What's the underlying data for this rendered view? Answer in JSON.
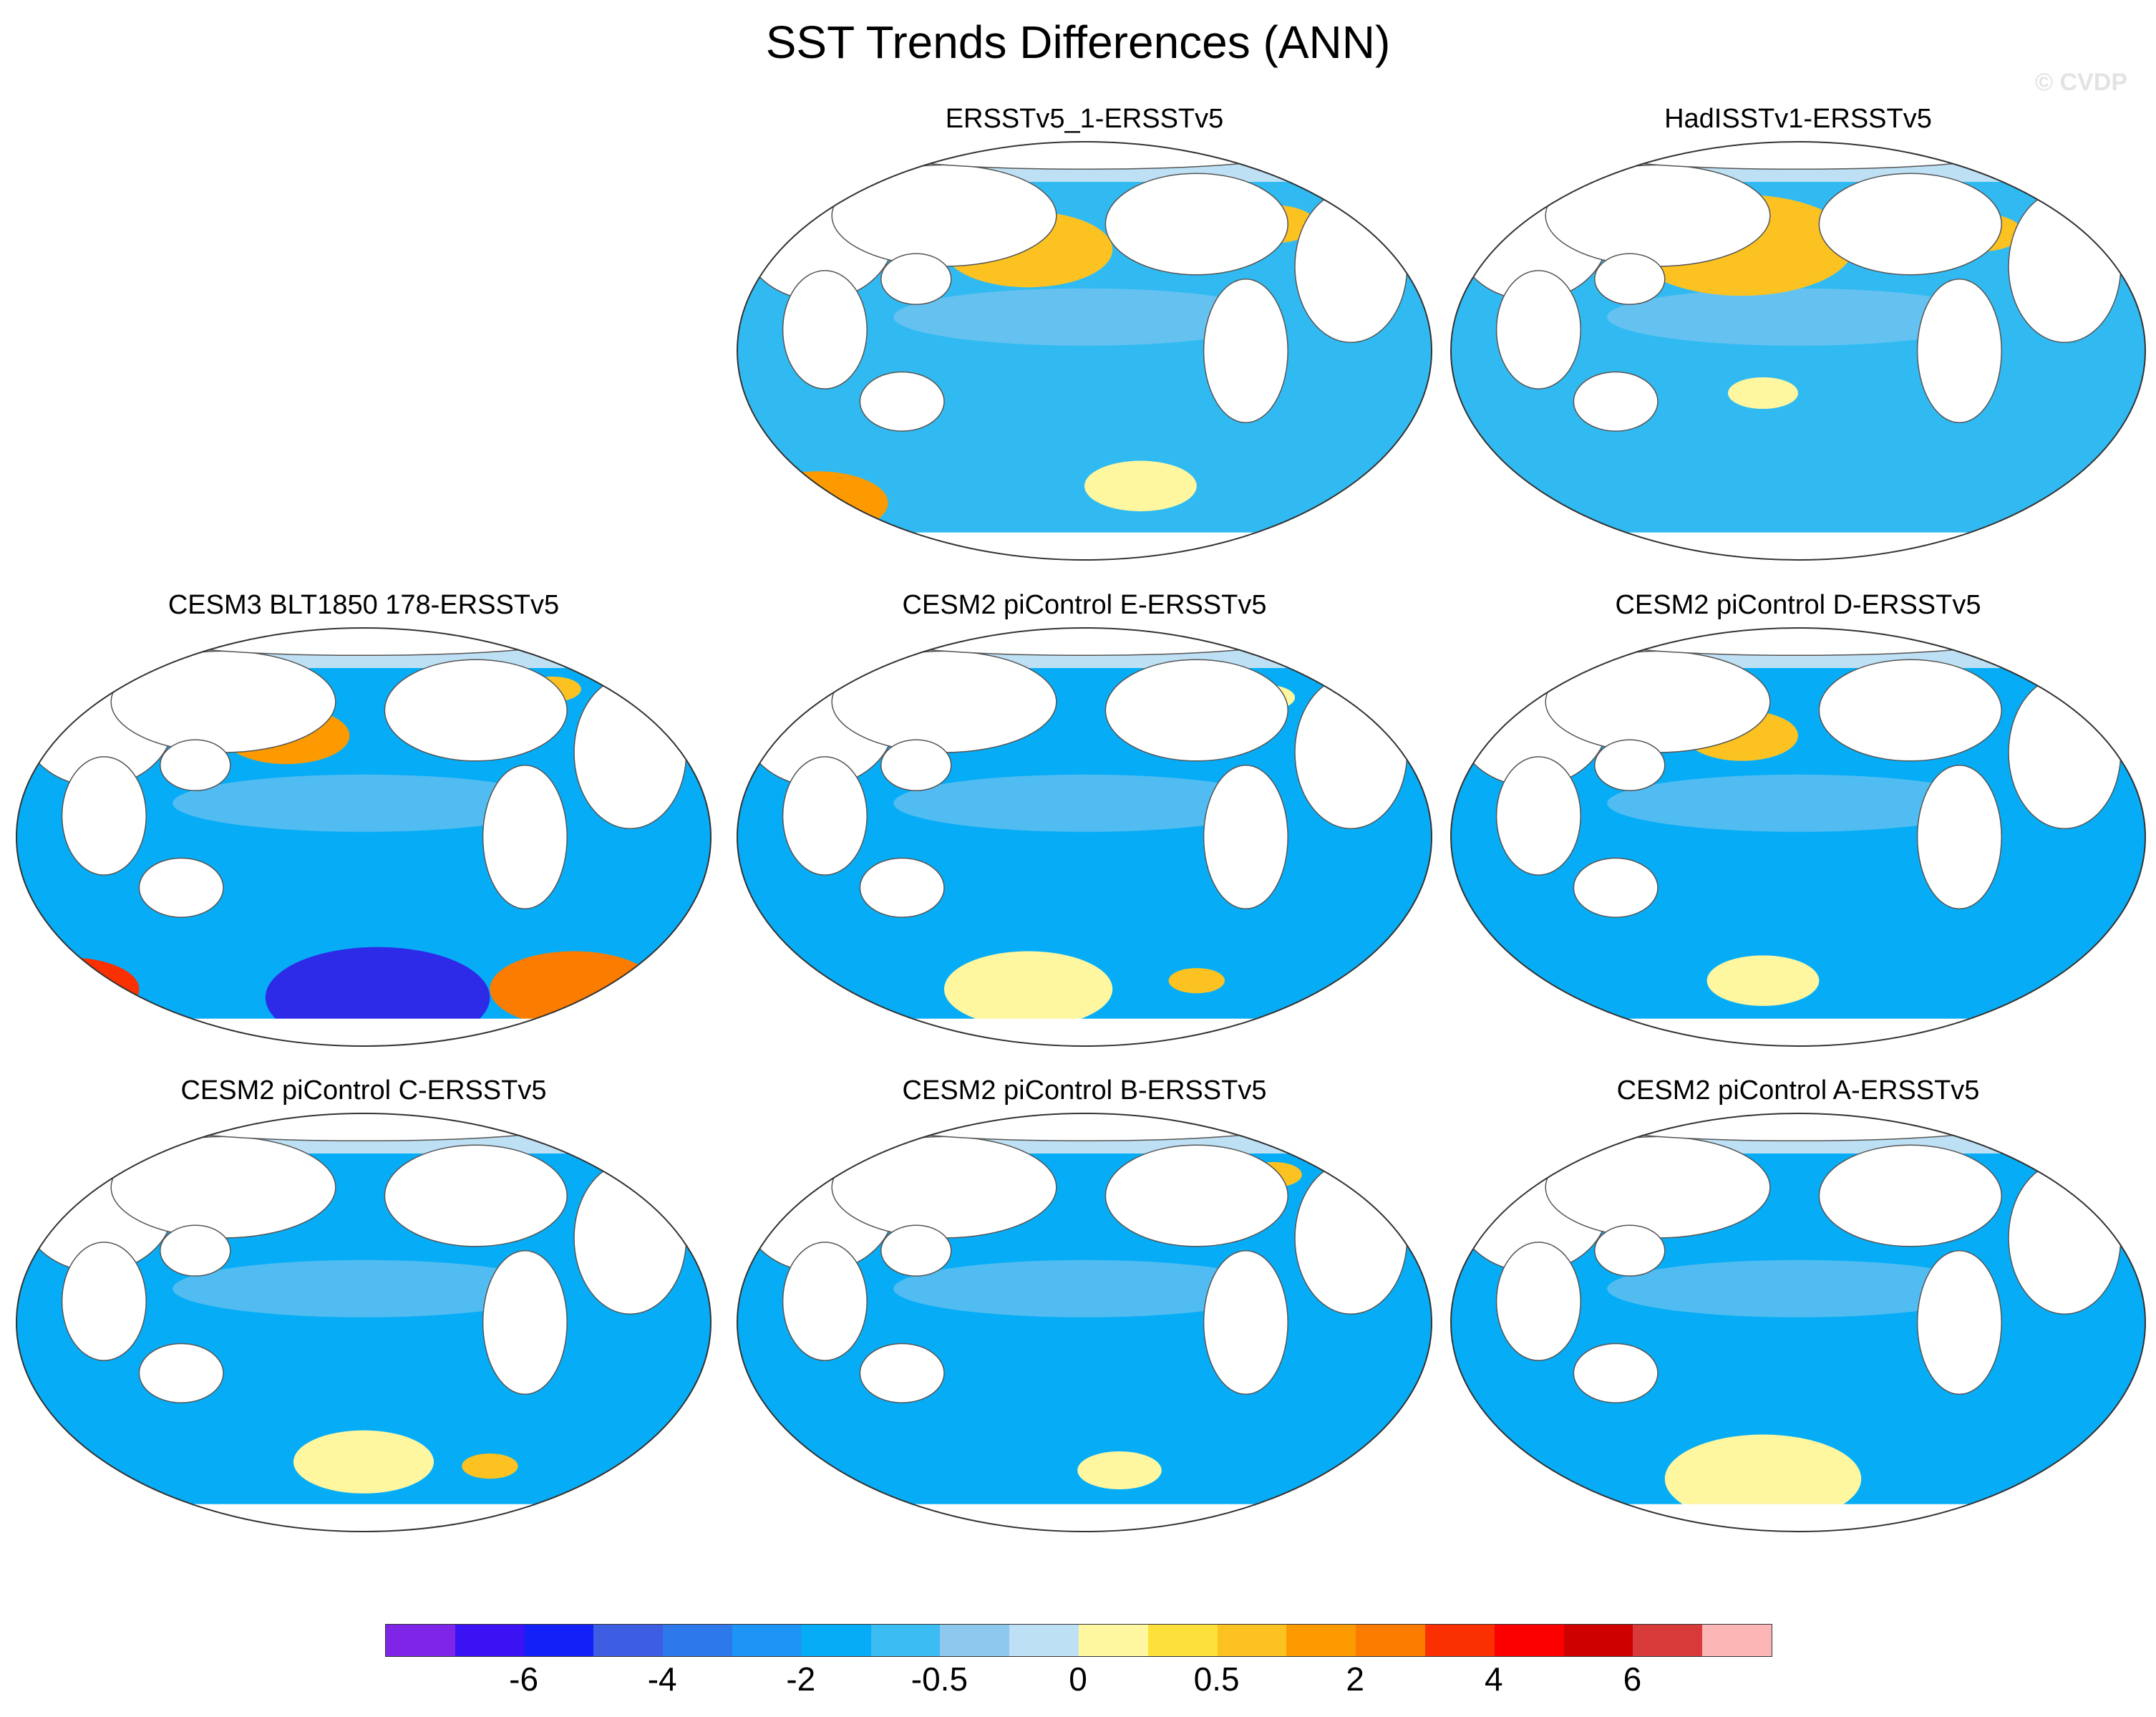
{
  "title": "SST Trends Differences (ANN)",
  "credit": "© CVDP",
  "panels": [
    {
      "label": "ERSSTv5_1-ERSSTv5",
      "base": "#31baf2",
      "hot": [
        [
          0.42,
          0.26,
          0.12,
          "#fcc221"
        ],
        [
          0.77,
          0.2,
          0.06,
          "#fcc221"
        ],
        [
          0.12,
          0.86,
          0.1,
          "#fc9a00"
        ],
        [
          0.58,
          0.82,
          0.08,
          "#fff6a0"
        ]
      ]
    },
    {
      "label": "HadISSTv1-ERSSTv5",
      "base": "#31baf2",
      "hot": [
        [
          0.42,
          0.25,
          0.16,
          "#fcc221"
        ],
        [
          0.76,
          0.22,
          0.06,
          "#fcc221"
        ],
        [
          0.45,
          0.6,
          0.05,
          "#fff6a0"
        ]
      ]
    },
    {
      "label": "CESM3 BLT1850 178-ERSSTv5",
      "base": "#06adf6",
      "hot": [
        [
          0.39,
          0.26,
          0.09,
          "#fc9a00"
        ],
        [
          0.77,
          0.15,
          0.04,
          "#fcc221"
        ],
        [
          0.08,
          0.86,
          0.1,
          "#fb3000"
        ],
        [
          0.52,
          0.88,
          0.16,
          "#2d2be8"
        ],
        [
          0.8,
          0.86,
          0.12,
          "#fc7c00"
        ]
      ]
    },
    {
      "label": "CESM2 piControl E-ERSSTv5",
      "base": "#06adf6",
      "hot": [
        [
          0.76,
          0.17,
          0.04,
          "#fff6a0"
        ],
        [
          0.42,
          0.86,
          0.12,
          "#fff6a0"
        ],
        [
          0.66,
          0.84,
          0.04,
          "#fcc221"
        ]
      ]
    },
    {
      "label": "CESM2 piControl D-ERSSTv5",
      "base": "#06adf6",
      "hot": [
        [
          0.42,
          0.26,
          0.08,
          "#fcc221"
        ],
        [
          0.45,
          0.84,
          0.08,
          "#fff6a0"
        ]
      ]
    },
    {
      "label": "CESM2 piControl C-ERSSTv5",
      "base": "#06adf6",
      "hot": [
        [
          0.5,
          0.83,
          0.1,
          "#fff6a0"
        ],
        [
          0.68,
          0.84,
          0.04,
          "#fcc221"
        ]
      ]
    },
    {
      "label": "CESM2 piControl B-ERSSTv5",
      "base": "#06adf6",
      "hot": [
        [
          0.77,
          0.15,
          0.04,
          "#fcc221"
        ],
        [
          0.55,
          0.85,
          0.06,
          "#fff6a0"
        ]
      ]
    },
    {
      "label": "CESM2 piControl A-ERSSTv5",
      "base": "#06adf6",
      "hot": [
        [
          0.45,
          0.87,
          0.14,
          "#fff6a0"
        ]
      ]
    }
  ],
  "colorbar": {
    "colors": [
      "#7e25e8",
      "#3b12f3",
      "#1320f7",
      "#3d5de2",
      "#2d78ea",
      "#1d95f6",
      "#06adf6",
      "#3bbcf3",
      "#8fc8ee",
      "#bde0f4",
      "#fff6a0",
      "#fde03a",
      "#fcc221",
      "#fc9a00",
      "#fc7c00",
      "#fb3000",
      "#fc0000",
      "#cf0000",
      "#d83a3a",
      "#fcb6b6"
    ],
    "labels": [
      "-6",
      "-4",
      "-2",
      "-0.5",
      "0",
      "0.5",
      "2",
      "4",
      "6"
    ],
    "label_levels": [
      1,
      3,
      5,
      7,
      9,
      11,
      13,
      15,
      17
    ]
  }
}
